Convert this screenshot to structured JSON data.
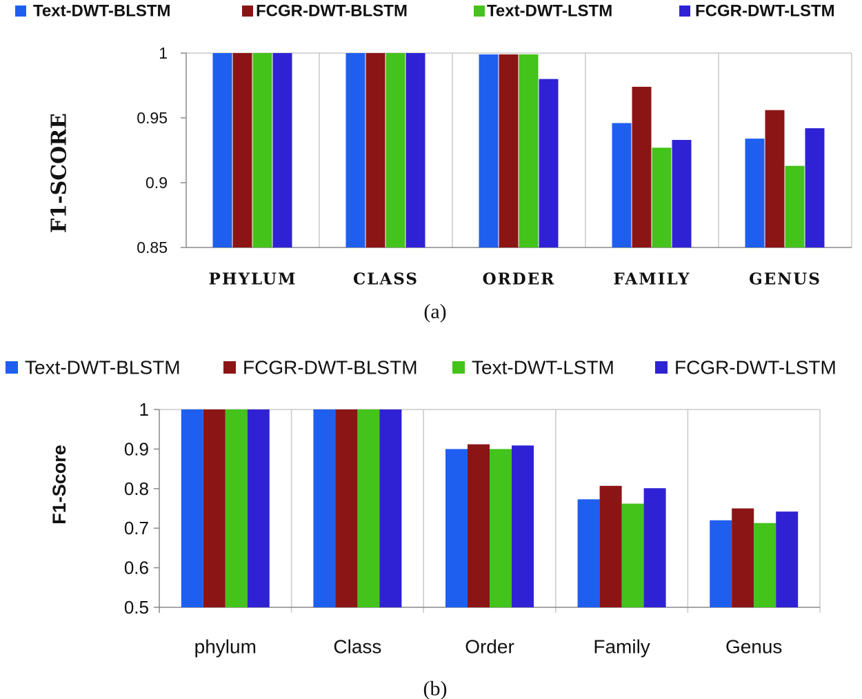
{
  "colors": {
    "text_dwt_blstm": "#1f5ff0",
    "fcgr_dwt_blstm": "#8b1515",
    "text_dwt_lstm": "#44c31a",
    "fcgr_dwt_lstm": "#2f22d4",
    "grid": "#c8c8c8",
    "axis": "#888888"
  },
  "chart_data": [
    {
      "type": "bar",
      "categories": [
        "PHYLUM",
        "CLASS",
        "ORDER",
        "FAMILY",
        "GENUS"
      ],
      "series": [
        {
          "name": "Text-DWT-BLSTM",
          "values": [
            1.0,
            1.0,
            0.999,
            0.946,
            0.934
          ]
        },
        {
          "name": "FCGR-DWT-BLSTM",
          "values": [
            1.0,
            1.0,
            0.999,
            0.974,
            0.956
          ]
        },
        {
          "name": "Text-DWT-LSTM",
          "values": [
            1.0,
            1.0,
            0.999,
            0.927,
            0.913
          ]
        },
        {
          "name": "FCGR-DWT-LSTM",
          "values": [
            1.0,
            1.0,
            0.98,
            0.933,
            0.942
          ]
        }
      ],
      "yticks": [
        "0.85",
        "0.9",
        "0.95",
        "1"
      ],
      "ylim": [
        0.85,
        1.0
      ],
      "ylabel": "F1-SCORE",
      "caption": "(a)",
      "legend_position": "top"
    },
    {
      "type": "bar",
      "categories": [
        "phylum",
        "Class",
        "Order",
        "Family",
        "Genus"
      ],
      "series": [
        {
          "name": "Text-DWT-BLSTM",
          "values": [
            1.0,
            1.0,
            0.9,
            0.773,
            0.72
          ]
        },
        {
          "name": "FCGR-DWT-BLSTM",
          "values": [
            1.0,
            1.0,
            0.912,
            0.807,
            0.75
          ]
        },
        {
          "name": "Text-DWT-LSTM",
          "values": [
            1.0,
            1.0,
            0.9,
            0.762,
            0.713
          ]
        },
        {
          "name": "FCGR-DWT-LSTM",
          "values": [
            1.0,
            1.0,
            0.909,
            0.801,
            0.742
          ]
        }
      ],
      "yticks": [
        "0.5",
        "0.6",
        "0.7",
        "0.8",
        "0.9",
        "1"
      ],
      "ylim": [
        0.5,
        1.0
      ],
      "ylabel": "F1-Score",
      "caption": "(b)",
      "legend_position": "top"
    }
  ]
}
